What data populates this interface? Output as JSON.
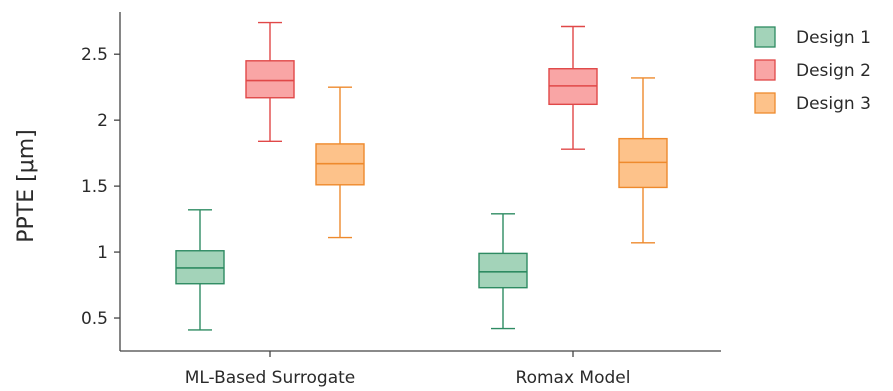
{
  "chart_data": {
    "type": "boxplot",
    "ylabel": "PPTE [μm]",
    "xlabel": "",
    "ylim": [
      0.25,
      2.82
    ],
    "yticks": [
      {
        "value": 0.5,
        "label": "0.5"
      },
      {
        "value": 1.0,
        "label": "1"
      },
      {
        "value": 1.5,
        "label": "1.5"
      },
      {
        "value": 2.0,
        "label": "2"
      },
      {
        "value": 2.5,
        "label": "2.5"
      }
    ],
    "categories": [
      "ML-Based Surrogate",
      "Romax Model"
    ],
    "legend_position": "top-right",
    "grid": false,
    "series": [
      {
        "name": "Design 1",
        "fill": "#a3d3b9",
        "stroke": "#2e8b62",
        "boxes": [
          {
            "whisker_low": 0.41,
            "q1": 0.76,
            "median": 0.88,
            "q3": 1.01,
            "whisker_high": 1.32
          },
          {
            "whisker_low": 0.42,
            "q1": 0.73,
            "median": 0.85,
            "q3": 0.99,
            "whisker_high": 1.29
          }
        ]
      },
      {
        "name": "Design 2",
        "fill": "#f9a5a5",
        "stroke": "#e04848",
        "boxes": [
          {
            "whisker_low": 1.84,
            "q1": 2.17,
            "median": 2.3,
            "q3": 2.45,
            "whisker_high": 2.74
          },
          {
            "whisker_low": 1.78,
            "q1": 2.12,
            "median": 2.26,
            "q3": 2.39,
            "whisker_high": 2.71
          }
        ]
      },
      {
        "name": "Design 3",
        "fill": "#fdc28a",
        "stroke": "#ee8a2d",
        "boxes": [
          {
            "whisker_low": 1.11,
            "q1": 1.51,
            "median": 1.67,
            "q3": 1.82,
            "whisker_high": 2.25
          },
          {
            "whisker_low": 1.07,
            "q1": 1.49,
            "median": 1.68,
            "q3": 1.86,
            "whisker_high": 2.32
          }
        ]
      }
    ]
  }
}
